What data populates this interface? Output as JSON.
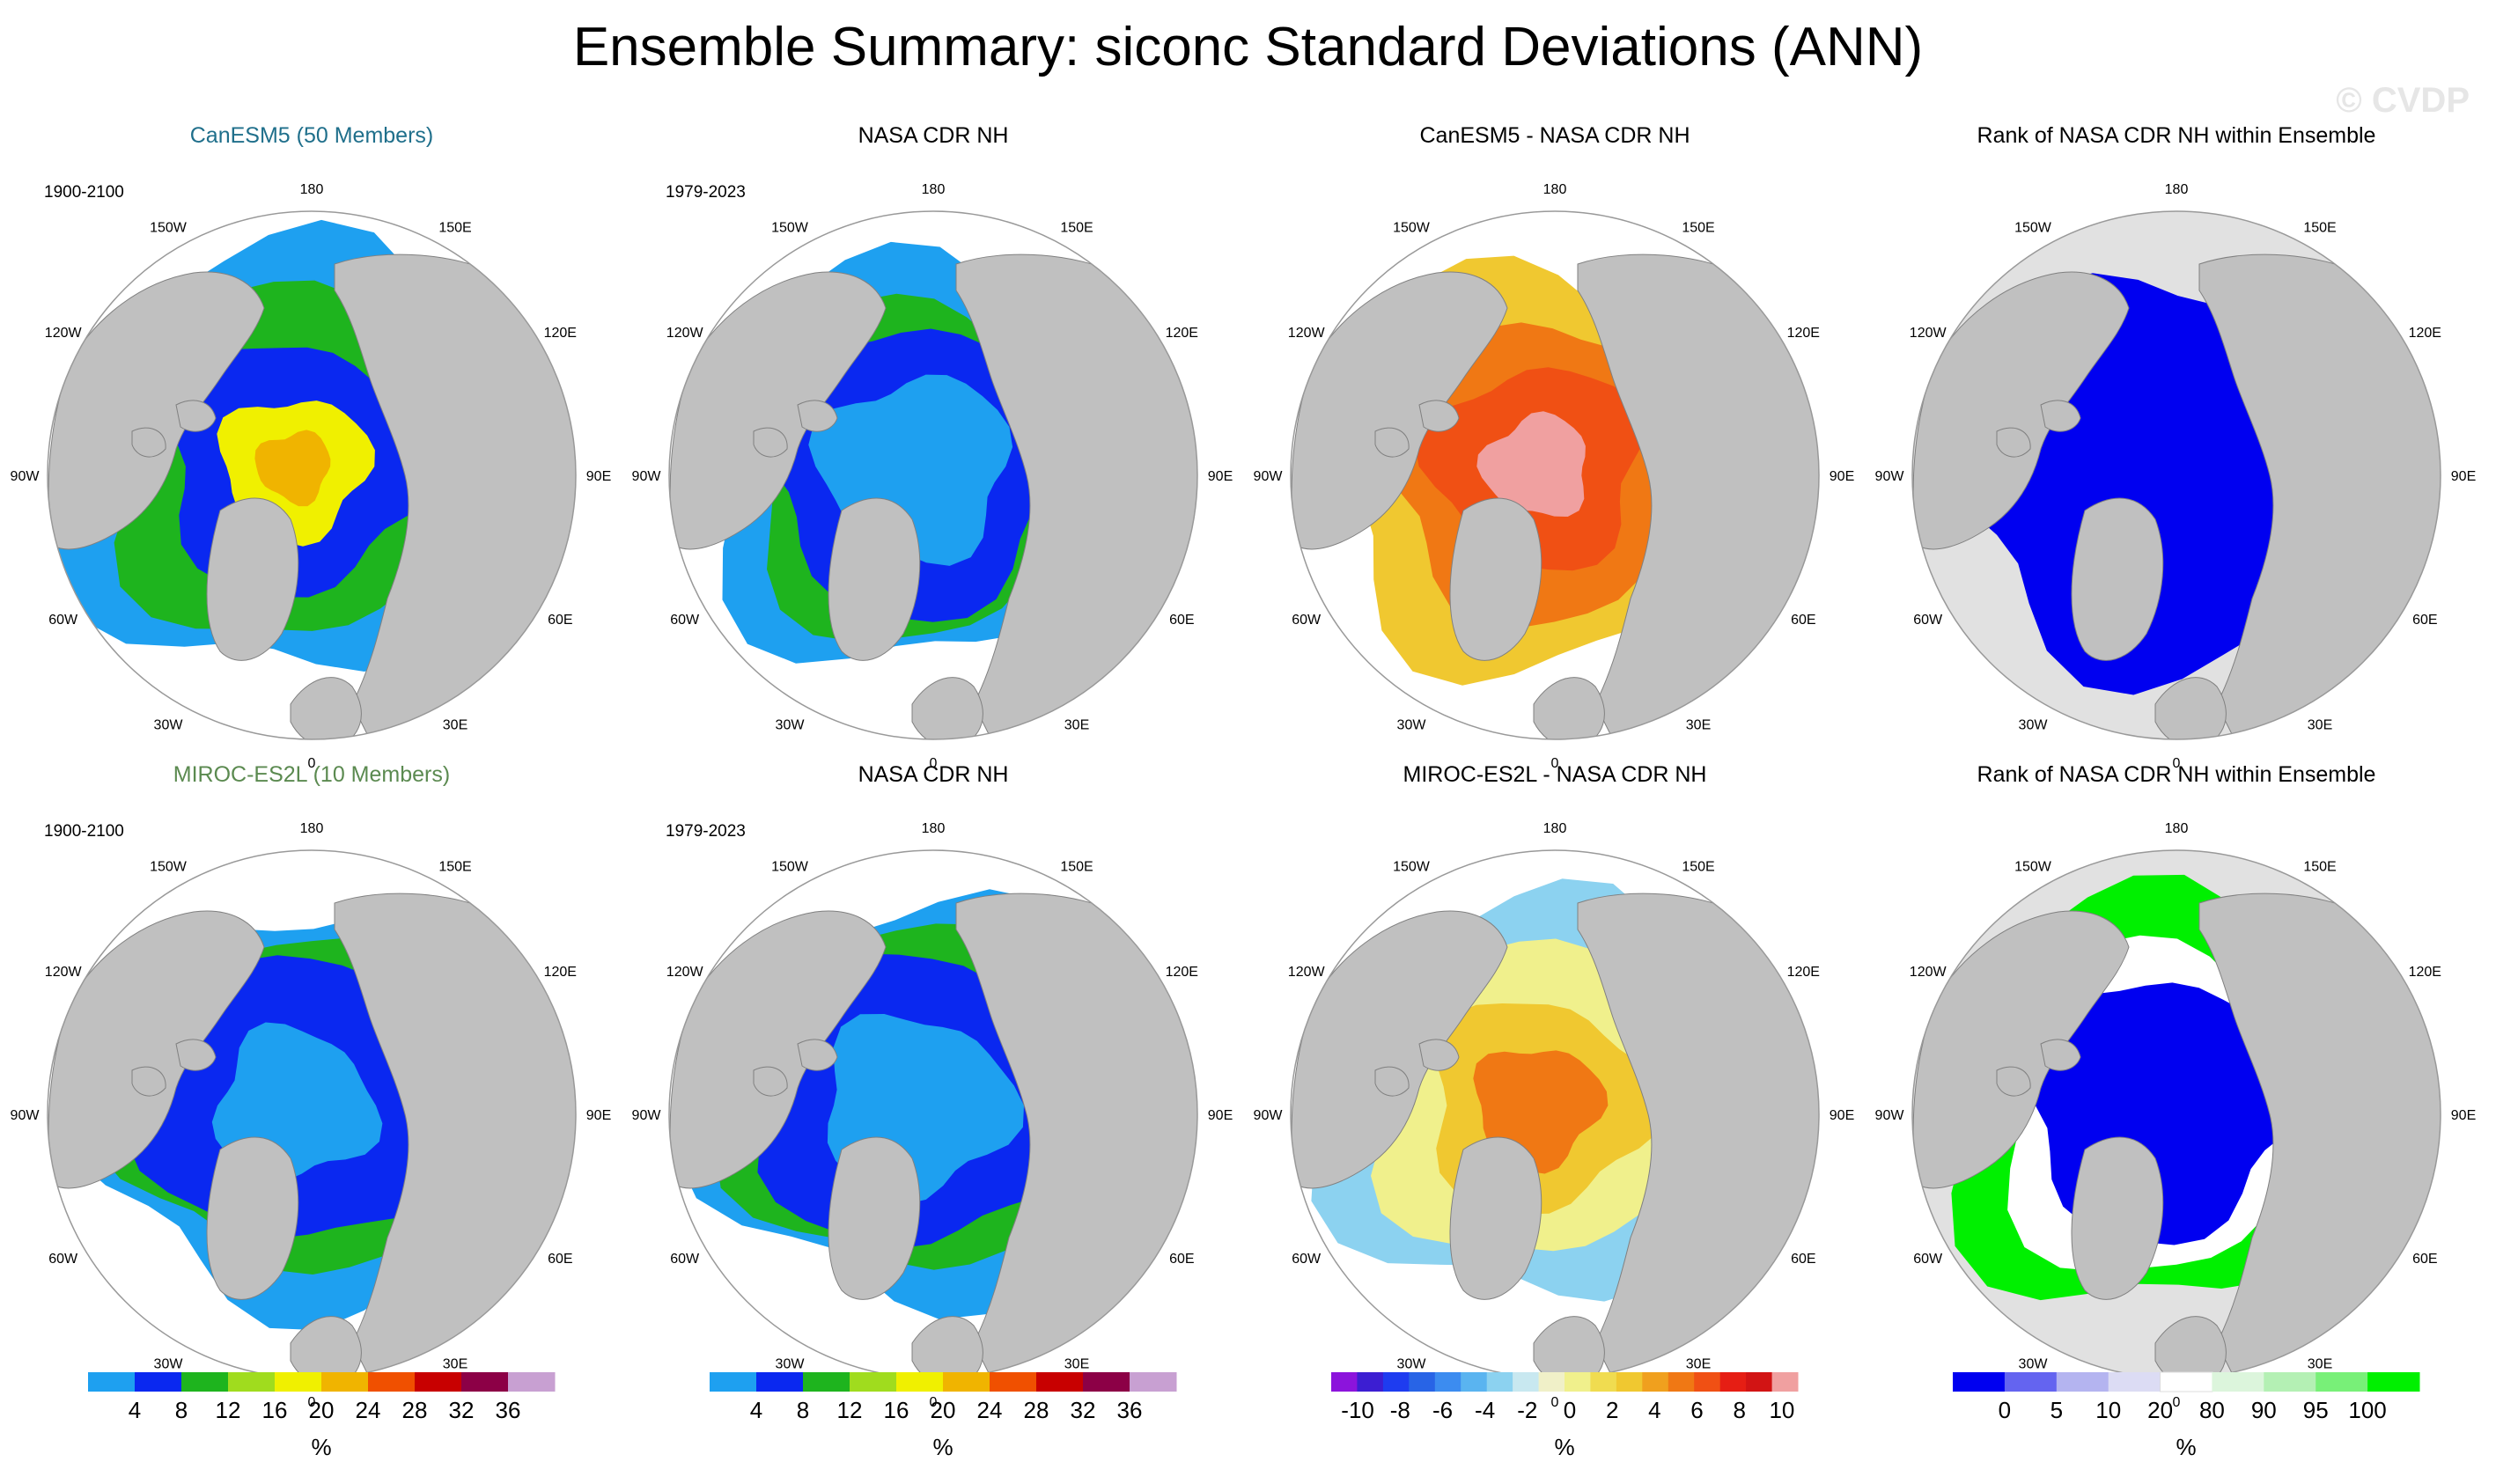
{
  "title": "Ensemble Summary: siconc Standard Deviations (ANN)",
  "watermark": "© CVDP",
  "longitude_labels": [
    "180",
    "150E",
    "120E",
    "90E",
    "60E",
    "30E",
    "0",
    "30W",
    "60W",
    "90W",
    "120W",
    "150W"
  ],
  "panels": [
    {
      "title": "CanESM5 (50 Members)",
      "title_color": "#1f6f8b",
      "period": "1900-2100",
      "kind": "sd_model"
    },
    {
      "title": "NASA CDR NH",
      "title_color": "#000000",
      "period": "1979-2023",
      "kind": "sd_obs"
    },
    {
      "title": "CanESM5 - NASA CDR NH",
      "title_color": "#000000",
      "period": "",
      "kind": "diff_pos"
    },
    {
      "title": "Rank of NASA CDR NH within Ensemble",
      "title_color": "#000000",
      "period": "",
      "kind": "rank_low"
    },
    {
      "title": "MIROC-ES2L (10 Members)",
      "title_color": "#5b8a50",
      "period": "1900-2100",
      "kind": "sd_model2"
    },
    {
      "title": "NASA CDR NH",
      "title_color": "#000000",
      "period": "1979-2023",
      "kind": "sd_obs"
    },
    {
      "title": "MIROC-ES2L - NASA CDR NH",
      "title_color": "#000000",
      "period": "",
      "kind": "diff_mix"
    },
    {
      "title": "Rank of NASA CDR NH within Ensemble",
      "title_color": "#000000",
      "period": "",
      "kind": "rank_mix"
    }
  ],
  "colorbars": [
    {
      "name": "sd",
      "unit": "%",
      "labels": [
        "4",
        "8",
        "12",
        "16",
        "20",
        "24",
        "28",
        "32",
        "36"
      ],
      "colors": [
        "#1ea0f0",
        "#0a28f0",
        "#1eb41e",
        "#a0dc1e",
        "#f0f000",
        "#f0b400",
        "#f05000",
        "#c80000",
        "#8c0046",
        "#c8a0d2"
      ]
    },
    {
      "name": "sd",
      "unit": "%",
      "labels": [
        "4",
        "8",
        "12",
        "16",
        "20",
        "24",
        "28",
        "32",
        "36"
      ],
      "colors": [
        "#1ea0f0",
        "#0a28f0",
        "#1eb41e",
        "#a0dc1e",
        "#f0f000",
        "#f0b400",
        "#f05000",
        "#c80000",
        "#8c0046",
        "#c8a0d2"
      ]
    },
    {
      "name": "diff",
      "unit": "%",
      "labels": [
        "-10",
        "-8",
        "-6",
        "-4",
        "-2",
        "0",
        "2",
        "4",
        "6",
        "8",
        "10"
      ],
      "colors": [
        "#8c14dc",
        "#3c1ed2",
        "#1e3cf0",
        "#2864e6",
        "#3c8cf0",
        "#5ab4f0",
        "#8cd2f0",
        "#c8e8f0",
        "#f0f0c8",
        "#f0f08c",
        "#f0dc50",
        "#f0c830",
        "#f0a01e",
        "#f07814",
        "#f05014",
        "#e61e14",
        "#d21414",
        "#f0a0a0"
      ]
    },
    {
      "name": "rank",
      "unit": "%",
      "labels": [
        "0",
        "5",
        "10",
        "20",
        "80",
        "90",
        "95",
        "100"
      ],
      "colors": [
        "#0000f0",
        "#6464f0",
        "#b4b4f0",
        "#dcdcf4",
        "#ffffff",
        "#dcf5dc",
        "#b4f0b4",
        "#78f078",
        "#00f000"
      ]
    }
  ],
  "colors": {
    "land": "#c0c0c0",
    "outside_land": "#e1e1e1",
    "ocean": "#ffffff"
  }
}
